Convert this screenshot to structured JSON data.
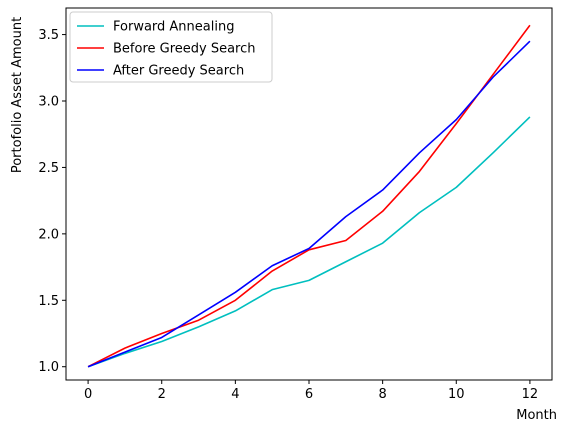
{
  "chart_data": {
    "type": "line",
    "title": "",
    "xlabel": "Month",
    "ylabel": "Portofolio Asset Amount",
    "xlim": [
      -0.6,
      12.6
    ],
    "ylim": [
      0.9,
      3.7
    ],
    "xticks": [
      0,
      2,
      4,
      6,
      8,
      10,
      12
    ],
    "xtick_labels": [
      "0",
      "2",
      "4",
      "6",
      "8",
      "10",
      "12"
    ],
    "yticks": [
      1.0,
      1.5,
      2.0,
      2.5,
      3.0,
      3.5
    ],
    "ytick_labels": [
      "1.0",
      "1.5",
      "2.0",
      "2.5",
      "3.0",
      "3.5"
    ],
    "grid": false,
    "legend_position": "top-left",
    "x": [
      0,
      1,
      2,
      3,
      4,
      5,
      6,
      7,
      8,
      9,
      10,
      11,
      12
    ],
    "series": [
      {
        "name": "Forward Annealing",
        "color": "#00bfbf",
        "values": [
          1.0,
          1.1,
          1.19,
          1.3,
          1.42,
          1.58,
          1.65,
          1.79,
          1.93,
          2.16,
          2.35,
          2.61,
          2.88
        ]
      },
      {
        "name": "Before Greedy Search",
        "color": "#ff0000",
        "values": [
          1.0,
          1.14,
          1.25,
          1.35,
          1.5,
          1.72,
          1.88,
          1.95,
          2.17,
          2.47,
          2.83,
          3.2,
          3.57
        ]
      },
      {
        "name": "After Greedy Search",
        "color": "#0000ff",
        "values": [
          1.0,
          1.11,
          1.22,
          1.39,
          1.56,
          1.76,
          1.89,
          2.13,
          2.33,
          2.61,
          2.86,
          3.18,
          3.45
        ]
      }
    ]
  }
}
